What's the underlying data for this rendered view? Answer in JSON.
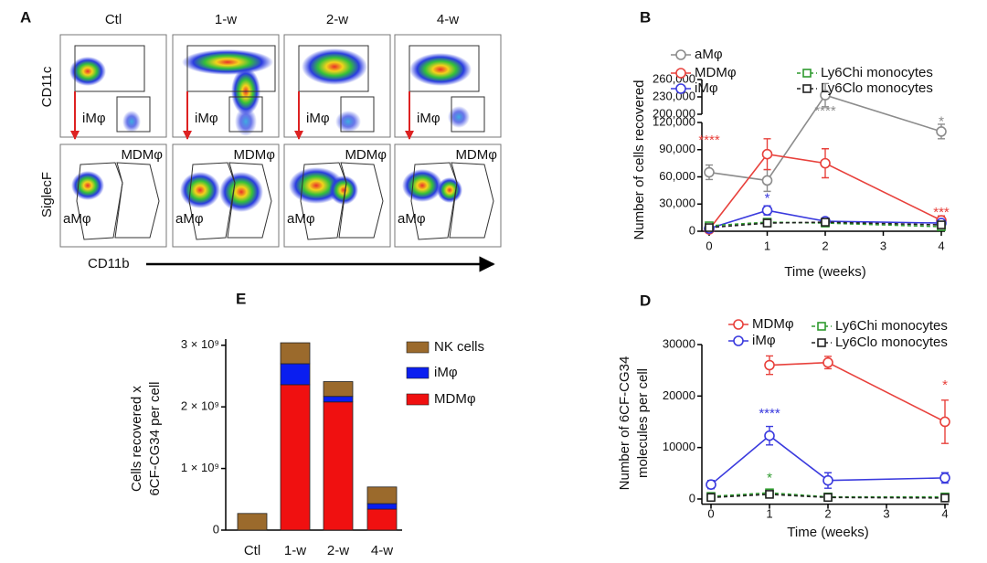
{
  "flow_panel": {
    "panel": "A",
    "columns": [
      "Ctl",
      "1-w",
      "2-w",
      "4-w"
    ],
    "y_labels": [
      "CD11c",
      "SiglecF"
    ],
    "x_label": "CD11b",
    "top_gate_labels": [
      "iMφ",
      "iMφ",
      "iMφ",
      "iMφ"
    ],
    "bottom_gate_labels": [
      {
        "left": "aMφ",
        "right": "MDMφ"
      },
      {
        "left": "aMφ",
        "right": "MDMφ"
      },
      {
        "left": "aMφ",
        "right": "MDMφ"
      },
      {
        "left": "aMφ",
        "right": "MDMφ"
      }
    ]
  },
  "chart_data": [
    {
      "type": "line",
      "panel": "B",
      "ylabel": [
        "Number of cells recovered"
      ],
      "xlabel": "Time (weeks)",
      "xlim": [
        0,
        4
      ],
      "xticks": [
        0,
        1,
        2,
        3,
        4
      ],
      "ylim": [
        0,
        120000
      ],
      "yticks": [
        0,
        {
          "value": 30000,
          "label": "30,000"
        },
        {
          "value": 60000,
          "label": "60,000"
        },
        {
          "value": 90000,
          "label": "90,000"
        },
        {
          "value": 120000,
          "label": "120,000"
        }
      ],
      "ylim_upper": [
        200000,
        260000
      ],
      "yticks_upper": [
        {
          "value": 200000,
          "label": "200,000"
        },
        {
          "value": 230000,
          "label": "230,000"
        },
        {
          "value": 260000,
          "label": "260,000"
        }
      ],
      "x": [
        0,
        1,
        2,
        4
      ],
      "series": [
        {
          "name": "aMφ",
          "color": "#8c8c8c",
          "marker": "circle",
          "dash": false,
          "values": [
            65000,
            56000,
            233000,
            110000
          ],
          "errors": [
            8000,
            12000,
            20000,
            8000
          ]
        },
        {
          "name": "MDMφ",
          "color": "#e8413c",
          "marker": "circle",
          "dash": false,
          "values": [
            2000,
            85000,
            75000,
            12000
          ],
          "errors": [
            1000,
            17000,
            16000,
            5000
          ]
        },
        {
          "name": "iMφ",
          "color": "#3a3ade",
          "marker": "circle",
          "dash": false,
          "values": [
            3000,
            23000,
            11000,
            9000
          ],
          "errors": [
            1000,
            5000,
            2000,
            2000
          ]
        },
        {
          "name": "Ly6Chi monocytes",
          "color": "#2e9a2e",
          "marker": "square",
          "dash": true,
          "values": [
            6000,
            10000,
            9000,
            5000
          ],
          "errors": [
            1000,
            2000,
            2000,
            1000
          ]
        },
        {
          "name": "Ly6Clo monocytes",
          "color": "#222222",
          "marker": "square",
          "dash": true,
          "values": [
            4000,
            9000,
            10000,
            7000
          ],
          "errors": [
            1000,
            2000,
            2000,
            1000
          ]
        }
      ],
      "annotations": [
        {
          "text": "****",
          "x": 0,
          "y": 100000,
          "color": "#e8413c"
        },
        {
          "text": "*",
          "x": 1,
          "y": 36000,
          "color": "#3a3ade"
        },
        {
          "text": "****",
          "x": 2,
          "y": 205000,
          "color": "#8c8c8c"
        },
        {
          "text": "*",
          "x": 4,
          "y": 125000,
          "color": "#8c8c8c"
        },
        {
          "text": "***",
          "x": 4,
          "y": 20000,
          "color": "#e8413c"
        }
      ]
    },
    {
      "type": "bar",
      "panel": "E",
      "ylabel": [
        "Cells recovered x",
        "6CF-CG34 per cell"
      ],
      "categories": [
        "Ctl",
        "1-w",
        "2-w",
        "4-w"
      ],
      "ylim": [
        0,
        3100000000
      ],
      "yticks": [
        0,
        {
          "value": 1000000000,
          "label": "1 × 10⁹"
        },
        {
          "value": 2000000000,
          "label": "2 × 10⁹"
        },
        {
          "value": 3000000000,
          "label": "3 × 10⁹"
        }
      ],
      "series": [
        {
          "name": "MDMφ",
          "color": "#f01010",
          "values": [
            0,
            2360000000,
            2080000000,
            340000000
          ]
        },
        {
          "name": "iMφ",
          "color": "#0a1ef0",
          "values": [
            0,
            340000000,
            90000000,
            90000000
          ]
        },
        {
          "name": "NK cells",
          "color": "#9b6a2c",
          "values": [
            270000000,
            340000000,
            240000000,
            270000000
          ]
        }
      ]
    },
    {
      "type": "line",
      "panel": "D",
      "ylabel": [
        "Number of 6CF-CG34",
        "molecules per cell"
      ],
      "xlabel": "Time (weeks)",
      "xlim": [
        0,
        4
      ],
      "xticks": [
        0,
        1,
        2,
        3,
        4
      ],
      "ylim": [
        -1000,
        30000
      ],
      "yticks": [
        0,
        10000,
        20000,
        30000
      ],
      "x": [
        0,
        1,
        2,
        4
      ],
      "series": [
        {
          "name": "MDMφ",
          "color": "#e8413c",
          "marker": "circle",
          "dash": false,
          "values": [
            null,
            26000,
            26500,
            15000
          ],
          "errors": [
            null,
            1800,
            1200,
            4200
          ]
        },
        {
          "name": "iMφ",
          "color": "#3a3ade",
          "marker": "circle",
          "dash": false,
          "values": [
            2800,
            12300,
            3600,
            4100
          ],
          "errors": [
            800,
            1800,
            1500,
            1000
          ]
        },
        {
          "name": "Ly6Chi monocytes",
          "color": "#2e9a2e",
          "marker": "square",
          "dash": true,
          "values": [
            500,
            1200,
            400,
            400
          ],
          "errors": [
            200,
            300,
            200,
            200
          ]
        },
        {
          "name": "Ly6Clo monocytes",
          "color": "#222222",
          "marker": "square",
          "dash": true,
          "values": [
            300,
            900,
            300,
            200
          ],
          "errors": [
            200,
            300,
            200,
            200
          ]
        }
      ],
      "annotations": [
        {
          "text": "****",
          "x": 1,
          "y": 16500,
          "color": "#3a3ade"
        },
        {
          "text": "*",
          "x": 1,
          "y": 4000,
          "color": "#2e9a2e"
        },
        {
          "text": "*",
          "x": 4,
          "y": 22000,
          "color": "#e8413c"
        }
      ]
    }
  ]
}
